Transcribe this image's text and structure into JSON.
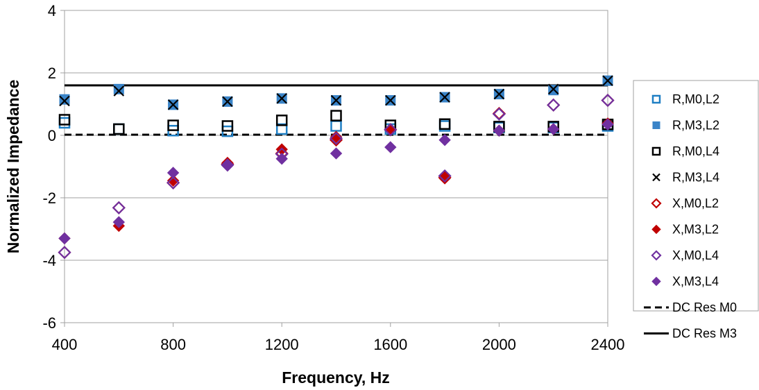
{
  "chart_data": {
    "type": "scatter",
    "xlabel": "Frequency, Hz",
    "ylabel": "Normalized Impedance",
    "xlim": [
      400,
      2400
    ],
    "ylim": [
      -6,
      4
    ],
    "x_ticks": [
      400,
      800,
      1200,
      1600,
      2000,
      2400
    ],
    "y_ticks": [
      -6,
      -4,
      -2,
      0,
      2,
      4
    ],
    "grid": "horizontal",
    "legend_position": "right",
    "x": [
      400,
      600,
      800,
      1000,
      1200,
      1400,
      1600,
      1800,
      2000,
      2200,
      2400
    ],
    "series": [
      {
        "name": "R,M0,L2",
        "marker": "square-open",
        "color": "#1f7fc4",
        "values": [
          0.4,
          0.2,
          0.15,
          0.13,
          0.2,
          0.3,
          0.2,
          0.3,
          0.25,
          0.25,
          0.3
        ]
      },
      {
        "name": "R,M3,L2",
        "marker": "square-filled",
        "color": "#3a84c8",
        "values": [
          1.15,
          1.48,
          0.98,
          1.08,
          1.18,
          1.12,
          1.12,
          1.22,
          1.32,
          1.45,
          1.75
        ]
      },
      {
        "name": "R,M0,L4",
        "marker": "square-open",
        "color": "#000000",
        "values": [
          0.5,
          0.2,
          0.32,
          0.3,
          0.48,
          0.63,
          0.32,
          0.36,
          0.28,
          0.28,
          0.35
        ]
      },
      {
        "name": "R,M3,L4",
        "marker": "x",
        "color": "#000000",
        "values": [
          1.1,
          1.42,
          0.98,
          1.08,
          1.18,
          1.12,
          1.12,
          1.22,
          1.32,
          1.48,
          1.75
        ]
      },
      {
        "name": "X,M0,L2",
        "marker": "diamond-open",
        "color": "#c00000",
        "values": [
          -3.75,
          -2.32,
          -1.52,
          -0.92,
          -0.58,
          -0.15,
          0.18,
          -1.35,
          0.7,
          0.97,
          1.12
        ]
      },
      {
        "name": "X,M3,L2",
        "marker": "diamond-filled",
        "color": "#c00000",
        "values": [
          -3.3,
          -2.9,
          -1.45,
          -0.88,
          -0.45,
          -0.05,
          0.2,
          -1.38,
          0.15,
          0.2,
          0.38
        ]
      },
      {
        "name": "X,M0,L4",
        "marker": "diamond-open",
        "color": "#7030a0",
        "values": [
          -3.75,
          -2.32,
          -1.52,
          -0.95,
          -0.6,
          -0.1,
          0.18,
          -1.3,
          0.68,
          0.97,
          1.12
        ]
      },
      {
        "name": "X,M3,L4",
        "marker": "diamond-filled",
        "color": "#7030a0",
        "values": [
          -3.3,
          -2.78,
          -1.2,
          -0.97,
          -0.75,
          -0.58,
          -0.38,
          -0.15,
          0.15,
          0.2,
          0.35
        ]
      },
      {
        "name": "DC Res M0",
        "type": "line",
        "style": "dashed",
        "color": "#000000",
        "y": 0.02
      },
      {
        "name": "DC Res M3",
        "type": "line",
        "style": "solid",
        "color": "#000000",
        "y": 1.6
      }
    ]
  }
}
